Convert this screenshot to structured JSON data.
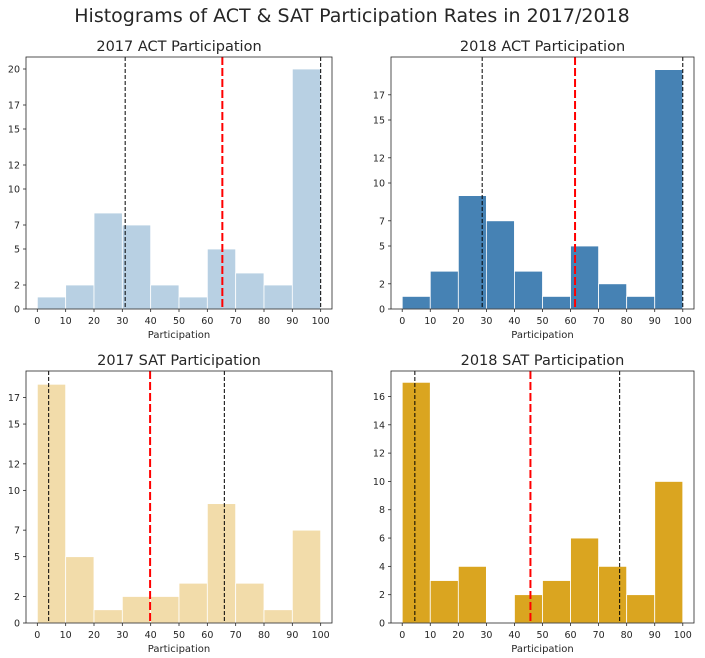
{
  "figure": {
    "title": "Histograms of ACT & SAT Participation Rates in 2017/2018"
  },
  "chart_data": [
    {
      "type": "bar",
      "title": "2017 ACT Participation",
      "xlabel": "Participation",
      "ylabel": "",
      "color": "#b8d0e3",
      "bin_edges": [
        0,
        10,
        20,
        30,
        40,
        50,
        60,
        70,
        80,
        90,
        100
      ],
      "values": [
        1,
        2,
        8,
        7,
        2,
        1,
        5,
        3,
        2,
        20
      ],
      "xlim": [
        -4,
        104
      ],
      "ylim": [
        0,
        21
      ],
      "x_ticks": [
        0,
        10,
        20,
        30,
        40,
        50,
        60,
        70,
        80,
        90,
        100
      ],
      "x_tick_labels": [
        "0",
        "10",
        "20",
        "30",
        "40",
        "50",
        "60",
        "70",
        "80",
        "90",
        "100"
      ],
      "y_ticks": [
        0,
        2,
        5,
        7,
        10,
        12,
        15,
        17,
        20
      ],
      "y_tick_labels": [
        "0",
        "2",
        "5",
        "7",
        "10",
        "12",
        "15",
        "17",
        "20"
      ],
      "mean_line": 65.3,
      "quantile_lines": [
        31,
        100
      ],
      "mean_line_color": "#ff0000",
      "quantile_line_color": "#000000",
      "grid": false
    },
    {
      "type": "bar",
      "title": "2018 ACT Participation",
      "xlabel": "Participation",
      "ylabel": "",
      "color": "#4682b4",
      "bin_edges": [
        0,
        10,
        20,
        30,
        40,
        50,
        60,
        70,
        80,
        90,
        100
      ],
      "values": [
        1,
        3,
        9,
        7,
        3,
        1,
        5,
        2,
        1,
        19
      ],
      "xlim": [
        -4,
        104
      ],
      "ylim": [
        0,
        20
      ],
      "x_ticks": [
        0,
        10,
        20,
        30,
        40,
        50,
        60,
        70,
        80,
        90,
        100
      ],
      "x_tick_labels": [
        "0",
        "10",
        "20",
        "30",
        "40",
        "50",
        "60",
        "70",
        "80",
        "90",
        "100"
      ],
      "y_ticks": [
        0,
        2,
        5,
        7,
        10,
        12,
        15,
        17
      ],
      "y_tick_labels": [
        "0",
        "2",
        "5",
        "7",
        "10",
        "12",
        "15",
        "17"
      ],
      "mean_line": 61.6,
      "quantile_lines": [
        28.5,
        100
      ],
      "mean_line_color": "#ff0000",
      "quantile_line_color": "#000000",
      "grid": false
    },
    {
      "type": "bar",
      "title": "2017 SAT Participation",
      "xlabel": "Participation",
      "ylabel": "",
      "color": "#f2dcaa",
      "bin_edges": [
        0,
        10,
        20,
        30,
        40,
        50,
        60,
        70,
        80,
        90,
        100
      ],
      "values": [
        18,
        5,
        1,
        2,
        2,
        3,
        9,
        3,
        1,
        7
      ],
      "xlim": [
        -4,
        104
      ],
      "ylim": [
        0,
        19
      ],
      "x_ticks": [
        0,
        10,
        20,
        30,
        40,
        50,
        60,
        70,
        80,
        90,
        100
      ],
      "x_tick_labels": [
        "0",
        "10",
        "20",
        "30",
        "40",
        "50",
        "60",
        "70",
        "80",
        "90",
        "100"
      ],
      "y_ticks": [
        0,
        2,
        5,
        7,
        10,
        12,
        15,
        17
      ],
      "y_tick_labels": [
        "0",
        "2",
        "5",
        "7",
        "10",
        "12",
        "15",
        "17"
      ],
      "mean_line": 39.8,
      "quantile_lines": [
        4,
        66
      ],
      "mean_line_color": "#ff0000",
      "quantile_line_color": "#000000",
      "grid": false
    },
    {
      "type": "bar",
      "title": "2018 SAT Participation",
      "xlabel": "Participation",
      "ylabel": "",
      "color": "#daa520",
      "bin_edges": [
        0,
        10,
        20,
        30,
        40,
        50,
        60,
        70,
        80,
        90,
        100
      ],
      "values": [
        17,
        3,
        4,
        0,
        2,
        3,
        6,
        4,
        2,
        10
      ],
      "xlim": [
        -4,
        104
      ],
      "ylim": [
        0,
        17.8
      ],
      "x_ticks": [
        0,
        10,
        20,
        30,
        40,
        50,
        60,
        70,
        80,
        90,
        100
      ],
      "x_tick_labels": [
        "0",
        "10",
        "20",
        "30",
        "40",
        "50",
        "60",
        "70",
        "80",
        "90",
        "100"
      ],
      "y_ticks": [
        0,
        2,
        4,
        6,
        8,
        10,
        12,
        14,
        16
      ],
      "y_tick_labels": [
        "0",
        "2",
        "4",
        "6",
        "8",
        "10",
        "12",
        "14",
        "16"
      ],
      "mean_line": 45.7,
      "quantile_lines": [
        4.5,
        77.5
      ],
      "mean_line_color": "#ff0000",
      "quantile_line_color": "#000000",
      "grid": false
    }
  ]
}
